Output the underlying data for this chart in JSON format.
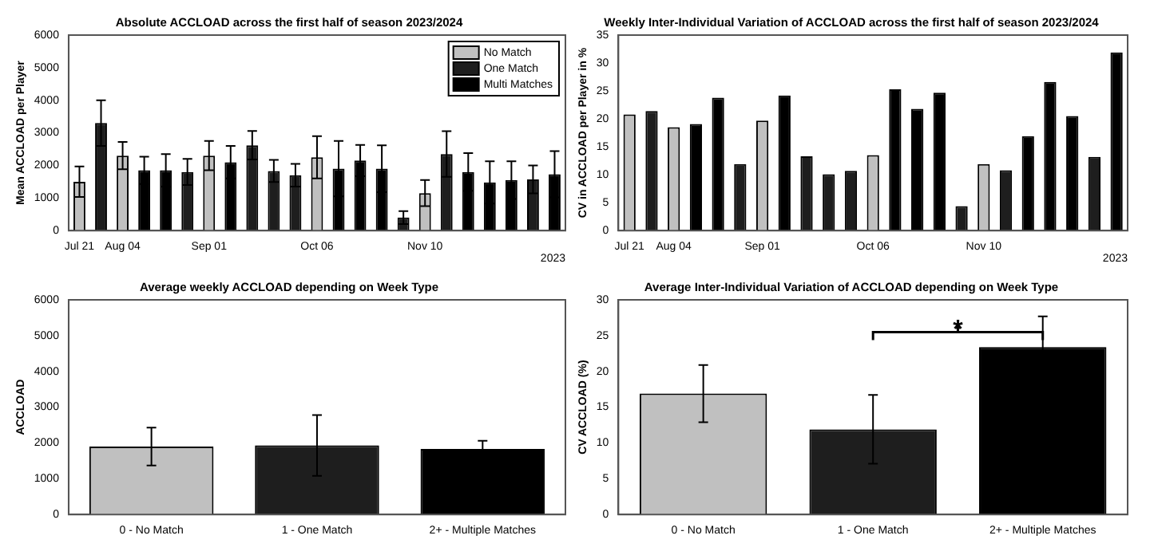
{
  "chart_data": [
    {
      "type": "bar",
      "title": "Absolute ACCLOAD across the first half of season 2023/2024",
      "ylabel": "Mean ACCLOAD per Player",
      "categories": [
        "Jul 21",
        null,
        "Aug 04",
        null,
        null,
        null,
        "Sep 01",
        null,
        null,
        null,
        null,
        "Oct 06",
        null,
        null,
        null,
        null,
        "Nov 10",
        null,
        null,
        null,
        null,
        null,
        null
      ],
      "stacked": true,
      "ylim": [
        0,
        6000
      ],
      "yticks": [
        0,
        1000,
        2000,
        3000,
        4000,
        5000,
        6000
      ],
      "legend": "top right",
      "annotations": [
        "2023"
      ],
      "series": [
        {
          "name": "No Match",
          "color": "#c0c0c0",
          "values": [
            1500,
            null,
            2300,
            null,
            null,
            null,
            2300,
            null,
            null,
            null,
            null,
            2250,
            null,
            null,
            null,
            null,
            1150,
            null,
            null,
            null,
            null,
            null,
            null
          ],
          "errors": [
            470,
            null,
            420,
            null,
            null,
            null,
            450,
            null,
            null,
            null,
            null,
            650,
            null,
            null,
            null,
            null,
            400,
            null,
            null,
            null,
            null,
            null,
            null
          ]
        },
        {
          "name": "One Match",
          "color": "#1e1e1e",
          "values": [
            null,
            3300,
            null,
            null,
            null,
            1800,
            null,
            null,
            2620,
            1830,
            1700,
            null,
            null,
            null,
            null,
            400,
            null,
            2350,
            null,
            null,
            null,
            1570,
            null
          ],
          "errors": [
            null,
            700,
            null,
            null,
            null,
            400,
            null,
            null,
            440,
            340,
            350,
            null,
            null,
            null,
            null,
            200,
            null,
            700,
            null,
            null,
            null,
            430,
            null
          ]
        },
        {
          "name": "Multi Matches",
          "color": "#000000",
          "values": [
            null,
            null,
            null,
            1850,
            1850,
            null,
            null,
            2100,
            null,
            null,
            null,
            null,
            1900,
            2150,
            1900,
            null,
            null,
            null,
            1800,
            1480,
            1550,
            null,
            1730
          ],
          "errors": [
            null,
            null,
            null,
            420,
            500,
            null,
            null,
            500,
            null,
            null,
            null,
            null,
            850,
            480,
            720,
            null,
            null,
            null,
            580,
            650,
            580,
            null,
            710
          ]
        }
      ]
    },
    {
      "type": "bar",
      "title": "Weekly Inter-Individual Variation of ACCLOAD across the first half of season 2023/2024",
      "ylabel": "CV in ACCLOAD per Player in %",
      "categories": [
        "Jul 21",
        null,
        "Aug 04",
        null,
        null,
        null,
        "Sep 01",
        null,
        null,
        null,
        null,
        "Oct 06",
        null,
        null,
        null,
        null,
        "Nov 10",
        null,
        null,
        null,
        null,
        null,
        null
      ],
      "ylim": [
        0,
        35
      ],
      "yticks": [
        0,
        5,
        10,
        15,
        20,
        25,
        30,
        35
      ],
      "annotations": [
        "2023"
      ],
      "values": [
        20.8,
        21.4,
        18.5,
        19.1,
        23.8,
        11.9,
        19.7,
        24.2,
        13.3,
        10.1,
        10.7,
        13.5,
        25.3,
        21.8,
        24.7,
        4.4,
        11.9,
        10.8,
        16.9,
        26.6,
        20.5,
        13.2,
        31.9
      ],
      "colors": [
        "#c0c0c0",
        "#1e1e1e",
        "#c0c0c0",
        "#000000",
        "#000000",
        "#1e1e1e",
        "#c0c0c0",
        "#000000",
        "#1e1e1e",
        "#1e1e1e",
        "#1e1e1e",
        "#c0c0c0",
        "#000000",
        "#000000",
        "#000000",
        "#1e1e1e",
        "#c0c0c0",
        "#1e1e1e",
        "#000000",
        "#000000",
        "#000000",
        "#1e1e1e",
        "#000000"
      ]
    },
    {
      "type": "bar",
      "title": "Average weekly ACCLOAD depending on Week Type",
      "ylabel": "ACCLOAD",
      "categories": [
        "0 - No Match",
        "1 - One Match",
        "2+ - Multiple Matches"
      ],
      "ylim": [
        0,
        6000
      ],
      "yticks": [
        0,
        1000,
        2000,
        3000,
        4000,
        5000,
        6000
      ],
      "values": [
        1900,
        1930,
        1830
      ],
      "errors": [
        530,
        850,
        230
      ],
      "colors": [
        "#c0c0c0",
        "#1e1e1e",
        "#000000"
      ]
    },
    {
      "type": "bar",
      "title": "Average Inter-Individual Variation of ACCLOAD depending on Week Type",
      "ylabel": "CV ACCLOAD (%)",
      "categories": [
        "0 - No Match",
        "1 - One Match",
        "2+ - Multiple Matches"
      ],
      "ylim": [
        0,
        30
      ],
      "yticks": [
        0,
        5,
        10,
        15,
        20,
        25,
        30
      ],
      "annotations": [
        "*"
      ],
      "values": [
        16.9,
        11.9,
        23.4
      ],
      "errors": [
        4,
        4.8,
        4.3
      ],
      "colors": [
        "#c0c0c0",
        "#1e1e1e",
        "#000000"
      ]
    }
  ]
}
